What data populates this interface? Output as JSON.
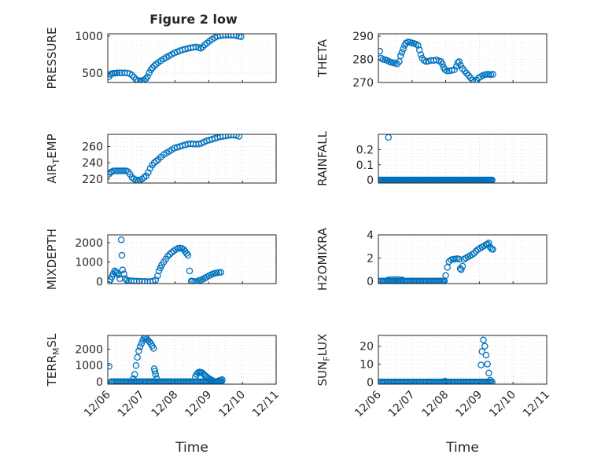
{
  "title": "Figure 2 low",
  "x_tick_labels": [
    "12/06",
    "12/07",
    "12/08",
    "12/09",
    "12/10",
    "12/11"
  ],
  "xlabel": "Time",
  "marker_color": "#0072BD",
  "chart_data": [
    {
      "type": "scatter",
      "name": "PRESSURE",
      "ylabel": "PRESSURE",
      "xlim": [
        0,
        5
      ],
      "ylim": [
        370,
        1030
      ],
      "yticks": [
        500,
        1000
      ],
      "x_tick_labels_shown": false,
      "grid": true,
      "marker": "circle",
      "points": [
        [
          0.04,
          450
        ],
        [
          0.08,
          480
        ],
        [
          0.12,
          490
        ],
        [
          0.17,
          495
        ],
        [
          0.22,
          497
        ],
        [
          0.28,
          500
        ],
        [
          0.35,
          500
        ],
        [
          0.42,
          500
        ],
        [
          0.5,
          500
        ],
        [
          0.58,
          498
        ],
        [
          0.65,
          490
        ],
        [
          0.72,
          470
        ],
        [
          0.78,
          440
        ],
        [
          0.84,
          410
        ],
        [
          0.9,
          395
        ],
        [
          0.96,
          392
        ],
        [
          1.02,
          395
        ],
        [
          1.08,
          405
        ],
        [
          1.13,
          420
        ],
        [
          1.18,
          450
        ],
        [
          1.23,
          500
        ],
        [
          1.28,
          540
        ],
        [
          1.33,
          570
        ],
        [
          1.38,
          595
        ],
        [
          1.43,
          615
        ],
        [
          1.5,
          640
        ],
        [
          1.58,
          665
        ],
        [
          1.66,
          690
        ],
        [
          1.74,
          710
        ],
        [
          1.82,
          730
        ],
        [
          1.9,
          750
        ],
        [
          1.98,
          770
        ],
        [
          2.06,
          785
        ],
        [
          2.14,
          800
        ],
        [
          2.22,
          812
        ],
        [
          2.3,
          822
        ],
        [
          2.38,
          832
        ],
        [
          2.46,
          840
        ],
        [
          2.54,
          845
        ],
        [
          2.62,
          850
        ],
        [
          2.7,
          842
        ],
        [
          2.76,
          835
        ],
        [
          2.82,
          850
        ],
        [
          2.88,
          880
        ],
        [
          2.95,
          905
        ],
        [
          3.02,
          930
        ],
        [
          3.1,
          955
        ],
        [
          3.18,
          978
        ],
        [
          3.26,
          995
        ],
        [
          3.34,
          1005
        ],
        [
          3.42,
          1010
        ],
        [
          3.5,
          1012
        ],
        [
          3.58,
          1013
        ],
        [
          3.66,
          1012
        ],
        [
          3.74,
          1010
        ],
        [
          3.82,
          1005
        ],
        [
          3.9,
          995
        ],
        [
          3.96,
          990
        ]
      ]
    },
    {
      "type": "scatter",
      "name": "THETA",
      "ylabel": "THETA",
      "xlim": [
        0,
        5
      ],
      "ylim": [
        270,
        291
      ],
      "yticks": [
        270,
        280,
        290
      ],
      "x_tick_labels_shown": false,
      "grid": true,
      "marker": "circle",
      "points": [
        [
          0.04,
          283.5
        ],
        [
          0.08,
          280.5
        ],
        [
          0.14,
          280
        ],
        [
          0.2,
          279.8
        ],
        [
          0.26,
          279.5
        ],
        [
          0.32,
          279
        ],
        [
          0.38,
          278.7
        ],
        [
          0.44,
          278.5
        ],
        [
          0.5,
          278.3
        ],
        [
          0.56,
          278
        ],
        [
          0.62,
          279
        ],
        [
          0.66,
          281.5
        ],
        [
          0.7,
          283
        ],
        [
          0.74,
          284.5
        ],
        [
          0.78,
          286
        ],
        [
          0.82,
          287
        ],
        [
          0.88,
          287.5
        ],
        [
          0.94,
          287.3
        ],
        [
          1.0,
          287
        ],
        [
          1.06,
          286.8
        ],
        [
          1.12,
          286.5
        ],
        [
          1.18,
          286
        ],
        [
          1.22,
          284
        ],
        [
          1.26,
          282
        ],
        [
          1.3,
          280.5
        ],
        [
          1.36,
          279.5
        ],
        [
          1.42,
          279
        ],
        [
          1.48,
          279.2
        ],
        [
          1.56,
          279.5
        ],
        [
          1.64,
          279.5
        ],
        [
          1.72,
          279.7
        ],
        [
          1.8,
          279.3
        ],
        [
          1.86,
          279
        ],
        [
          1.9,
          278
        ],
        [
          1.94,
          276.5
        ],
        [
          1.98,
          275.5
        ],
        [
          2.04,
          275
        ],
        [
          2.1,
          275
        ],
        [
          2.18,
          275.2
        ],
        [
          2.26,
          275.5
        ],
        [
          2.32,
          277
        ],
        [
          2.36,
          278.5
        ],
        [
          2.4,
          279
        ],
        [
          2.44,
          277.5
        ],
        [
          2.5,
          276
        ],
        [
          2.56,
          275
        ],
        [
          2.62,
          274
        ],
        [
          2.68,
          273
        ],
        [
          2.74,
          272
        ],
        [
          2.8,
          271
        ],
        [
          2.86,
          270.5
        ],
        [
          2.92,
          271
        ],
        [
          2.98,
          272
        ],
        [
          3.04,
          272.5
        ],
        [
          3.1,
          273
        ],
        [
          3.16,
          273.3
        ],
        [
          3.22,
          273.5
        ],
        [
          3.28,
          273.5
        ],
        [
          3.34,
          273.4
        ],
        [
          3.4,
          273.5
        ]
      ]
    },
    {
      "type": "scatter",
      "name": "AIR_TEMP",
      "ylabel": "AIR_TEMP",
      "xlim": [
        0,
        5
      ],
      "ylim": [
        215,
        275
      ],
      "yticks": [
        220,
        240,
        260
      ],
      "x_tick_labels_shown": false,
      "grid": true,
      "marker": "circle",
      "points": [
        [
          0.04,
          226
        ],
        [
          0.08,
          228
        ],
        [
          0.12,
          229
        ],
        [
          0.18,
          230
        ],
        [
          0.24,
          230
        ],
        [
          0.3,
          230
        ],
        [
          0.36,
          230
        ],
        [
          0.42,
          230
        ],
        [
          0.48,
          230
        ],
        [
          0.54,
          230
        ],
        [
          0.6,
          229
        ],
        [
          0.66,
          226
        ],
        [
          0.72,
          222
        ],
        [
          0.78,
          220
        ],
        [
          0.84,
          219
        ],
        [
          0.9,
          218
        ],
        [
          0.96,
          219
        ],
        [
          1.02,
          220
        ],
        [
          1.08,
          222
        ],
        [
          1.14,
          224
        ],
        [
          1.2,
          228
        ],
        [
          1.26,
          233
        ],
        [
          1.32,
          237
        ],
        [
          1.38,
          240
        ],
        [
          1.44,
          242
        ],
        [
          1.5,
          244
        ],
        [
          1.58,
          247
        ],
        [
          1.66,
          250
        ],
        [
          1.74,
          252
        ],
        [
          1.82,
          254
        ],
        [
          1.9,
          256
        ],
        [
          1.98,
          258
        ],
        [
          2.06,
          259
        ],
        [
          2.14,
          260
        ],
        [
          2.22,
          261
        ],
        [
          2.3,
          262
        ],
        [
          2.38,
          263
        ],
        [
          2.46,
          263.5
        ],
        [
          2.54,
          263
        ],
        [
          2.62,
          263
        ],
        [
          2.7,
          263
        ],
        [
          2.78,
          264
        ],
        [
          2.86,
          265.5
        ],
        [
          2.94,
          267
        ],
        [
          3.02,
          268
        ],
        [
          3.1,
          269
        ],
        [
          3.18,
          270
        ],
        [
          3.26,
          271
        ],
        [
          3.34,
          272
        ],
        [
          3.42,
          272.5
        ],
        [
          3.5,
          273
        ],
        [
          3.58,
          273.5
        ],
        [
          3.66,
          274
        ],
        [
          3.74,
          274
        ],
        [
          3.82,
          273.5
        ],
        [
          3.9,
          272.5
        ]
      ]
    },
    {
      "type": "scatter",
      "name": "RAINFALL",
      "ylabel": "RAINFALL",
      "xlim": [
        0,
        5
      ],
      "ylim": [
        -0.02,
        0.3
      ],
      "yticks": [
        0,
        0.1,
        0.2
      ],
      "x_tick_labels_shown": false,
      "grid": true,
      "marker": "circle",
      "baseline": {
        "y": 0,
        "x_from": 0.02,
        "x_to": 3.4,
        "step": 0.03
      },
      "points": [
        [
          0.3,
          0.28
        ]
      ]
    },
    {
      "type": "scatter",
      "name": "MIXDEPTH",
      "ylabel": "MIXDEPTH",
      "xlim": [
        0,
        5
      ],
      "ylim": [
        -100,
        2400
      ],
      "yticks": [
        0,
        1000,
        2000
      ],
      "x_tick_labels_shown": false,
      "grid": true,
      "marker": "circle",
      "points": [
        [
          0.04,
          0
        ],
        [
          0.08,
          100
        ],
        [
          0.12,
          250
        ],
        [
          0.16,
          400
        ],
        [
          0.2,
          550
        ],
        [
          0.24,
          500
        ],
        [
          0.28,
          450
        ],
        [
          0.32,
          350
        ],
        [
          0.36,
          150
        ],
        [
          0.4,
          2150
        ],
        [
          0.42,
          1350
        ],
        [
          0.44,
          600
        ],
        [
          0.48,
          400
        ],
        [
          0.52,
          150
        ],
        [
          0.56,
          80
        ],
        [
          0.62,
          50
        ],
        [
          0.7,
          40
        ],
        [
          0.78,
          30
        ],
        [
          0.86,
          20
        ],
        [
          0.94,
          15
        ],
        [
          1.02,
          10
        ],
        [
          1.1,
          10
        ],
        [
          1.18,
          0
        ],
        [
          1.26,
          0
        ],
        [
          1.34,
          30
        ],
        [
          1.42,
          80
        ],
        [
          1.48,
          300
        ],
        [
          1.52,
          550
        ],
        [
          1.56,
          700
        ],
        [
          1.6,
          850
        ],
        [
          1.66,
          1000
        ],
        [
          1.72,
          1150
        ],
        [
          1.78,
          1300
        ],
        [
          1.84,
          1400
        ],
        [
          1.9,
          1500
        ],
        [
          1.96,
          1580
        ],
        [
          2.02,
          1650
        ],
        [
          2.08,
          1700
        ],
        [
          2.14,
          1720
        ],
        [
          2.2,
          1700
        ],
        [
          2.26,
          1650
        ],
        [
          2.3,
          1550
        ],
        [
          2.34,
          1450
        ],
        [
          2.38,
          1350
        ],
        [
          2.43,
          550
        ],
        [
          2.48,
          30
        ],
        [
          2.52,
          20
        ],
        [
          2.58,
          0
        ],
        [
          2.64,
          0
        ],
        [
          2.7,
          50
        ],
        [
          2.76,
          80
        ],
        [
          2.82,
          120
        ],
        [
          2.88,
          180
        ],
        [
          2.94,
          240
        ],
        [
          3.0,
          300
        ],
        [
          3.06,
          350
        ],
        [
          3.12,
          400
        ],
        [
          3.18,
          430
        ],
        [
          3.24,
          450
        ],
        [
          3.3,
          470
        ],
        [
          3.36,
          480
        ]
      ]
    },
    {
      "type": "scatter",
      "name": "H2OMIXRA",
      "ylabel": "H2OMIXRA",
      "xlim": [
        0,
        5
      ],
      "ylim": [
        -0.2,
        4
      ],
      "yticks": [
        0,
        2,
        4
      ],
      "x_tick_labels_shown": false,
      "grid": true,
      "marker": "circle",
      "baseline": {
        "y": 0.02,
        "x_from": 0.02,
        "x_to": 1.95,
        "step": 0.04
      },
      "points": [
        [
          0.3,
          0.12
        ],
        [
          0.4,
          0.14
        ],
        [
          0.5,
          0.15
        ],
        [
          0.6,
          0.15
        ],
        [
          0.7,
          0.12
        ],
        [
          1.96,
          0.05
        ],
        [
          2.0,
          0.5
        ],
        [
          2.05,
          1.2
        ],
        [
          2.1,
          1.7
        ],
        [
          2.16,
          1.85
        ],
        [
          2.22,
          1.9
        ],
        [
          2.28,
          1.92
        ],
        [
          2.34,
          1.95
        ],
        [
          2.4,
          1.9
        ],
        [
          2.43,
          1.1
        ],
        [
          2.46,
          1.0
        ],
        [
          2.5,
          1.3
        ],
        [
          2.54,
          1.9
        ],
        [
          2.6,
          2.0
        ],
        [
          2.66,
          2.1
        ],
        [
          2.72,
          2.2
        ],
        [
          2.78,
          2.3
        ],
        [
          2.84,
          2.4
        ],
        [
          2.9,
          2.6
        ],
        [
          2.96,
          2.75
        ],
        [
          3.02,
          2.85
        ],
        [
          3.08,
          2.95
        ],
        [
          3.14,
          3.05
        ],
        [
          3.2,
          3.15
        ],
        [
          3.24,
          3.2
        ],
        [
          3.28,
          3.3
        ],
        [
          3.32,
          2.95
        ],
        [
          3.36,
          2.8
        ],
        [
          3.4,
          2.75
        ]
      ]
    },
    {
      "type": "scatter",
      "name": "TERR_MSL",
      "ylabel": "TERR_MSL",
      "xlim": [
        0,
        5
      ],
      "ylim": [
        -150,
        2850
      ],
      "yticks": [
        0,
        1000,
        2000
      ],
      "x_tick_labels_shown": true,
      "xlabel": "Time",
      "grid": true,
      "marker": "circle",
      "baseline": {
        "y": 0,
        "x_from": 0.1,
        "x_to": 3.4,
        "step": 0.04
      },
      "points": [
        [
          0.04,
          950
        ],
        [
          0.76,
          180
        ],
        [
          0.8,
          450
        ],
        [
          0.84,
          1000
        ],
        [
          0.88,
          1500
        ],
        [
          0.92,
          1900
        ],
        [
          0.96,
          2150
        ],
        [
          1.0,
          2350
        ],
        [
          1.04,
          2550
        ],
        [
          1.08,
          2680
        ],
        [
          1.12,
          2720
        ],
        [
          1.16,
          2650
        ],
        [
          1.2,
          2550
        ],
        [
          1.24,
          2450
        ],
        [
          1.28,
          2350
        ],
        [
          1.32,
          2200
        ],
        [
          1.36,
          2050
        ],
        [
          1.38,
          800
        ],
        [
          1.4,
          650
        ],
        [
          1.42,
          450
        ],
        [
          1.45,
          200
        ],
        [
          2.6,
          300
        ],
        [
          2.64,
          450
        ],
        [
          2.68,
          550
        ],
        [
          2.72,
          600
        ],
        [
          2.76,
          580
        ],
        [
          2.8,
          550
        ],
        [
          2.84,
          480
        ],
        [
          2.88,
          400
        ],
        [
          2.92,
          330
        ],
        [
          2.96,
          260
        ],
        [
          3.0,
          200
        ],
        [
          3.04,
          150
        ],
        [
          3.08,
          100
        ],
        [
          3.12,
          60
        ],
        [
          3.3,
          60
        ],
        [
          3.36,
          100
        ],
        [
          3.4,
          130
        ]
      ]
    },
    {
      "type": "scatter",
      "name": "SUN_FLUX",
      "ylabel": "SUN_FLUX",
      "xlim": [
        0,
        5
      ],
      "ylim": [
        -1.2,
        26
      ],
      "yticks": [
        0,
        10,
        20
      ],
      "x_tick_labels_shown": true,
      "xlabel": "Time",
      "grid": true,
      "marker": "circle",
      "baseline": {
        "y": 0,
        "x_from": 0.02,
        "x_to": 3.4,
        "step": 0.04
      },
      "points": [
        [
          1.98,
          0.5
        ],
        [
          3.05,
          9.5
        ],
        [
          3.08,
          17
        ],
        [
          3.12,
          23.5
        ],
        [
          3.16,
          20
        ],
        [
          3.2,
          15
        ],
        [
          3.24,
          10
        ],
        [
          3.28,
          5
        ],
        [
          3.32,
          1
        ]
      ]
    }
  ]
}
